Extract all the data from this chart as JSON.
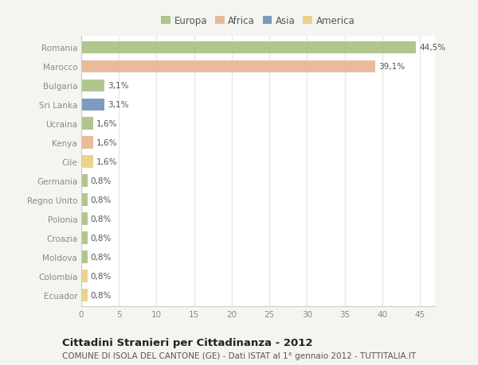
{
  "categories": [
    "Romania",
    "Marocco",
    "Bulgaria",
    "Sri Lanka",
    "Ucraina",
    "Kenya",
    "Cile",
    "Germania",
    "Regno Unito",
    "Polonia",
    "Croazia",
    "Moldova",
    "Colombia",
    "Ecuador"
  ],
  "values": [
    44.5,
    39.1,
    3.1,
    3.1,
    1.6,
    1.6,
    1.6,
    0.8,
    0.8,
    0.8,
    0.8,
    0.8,
    0.8,
    0.8
  ],
  "labels": [
    "44,5%",
    "39,1%",
    "3,1%",
    "3,1%",
    "1,6%",
    "1,6%",
    "1,6%",
    "0,8%",
    "0,8%",
    "0,8%",
    "0,8%",
    "0,8%",
    "0,8%",
    "0,8%"
  ],
  "colors": [
    "#a8c080",
    "#e8b490",
    "#a8c080",
    "#7090b8",
    "#a8c080",
    "#e8b490",
    "#e8d080",
    "#a8c080",
    "#a8c080",
    "#a8c080",
    "#a8c080",
    "#a8c080",
    "#e8d080",
    "#e8d080"
  ],
  "xlim": [
    0,
    47
  ],
  "xticks": [
    0,
    5,
    10,
    15,
    20,
    25,
    30,
    35,
    40,
    45
  ],
  "legend_items": [
    {
      "label": "Europa",
      "color": "#a8c080"
    },
    {
      "label": "Africa",
      "color": "#e8b490"
    },
    {
      "label": "Asia",
      "color": "#7090b8"
    },
    {
      "label": "America",
      "color": "#e8d080"
    }
  ],
  "title": "Cittadini Stranieri per Cittadinanza - 2012",
  "subtitle": "COMUNE DI ISOLA DEL CANTONE (GE) - Dati ISTAT al 1° gennaio 2012 - TUTTITALIA.IT",
  "outer_bg": "#f5f5f0",
  "plot_bg": "#ffffff",
  "grid_color": "#e8e8e8",
  "bar_height": 0.65,
  "label_fontsize": 7.5,
  "tick_fontsize": 7.5,
  "title_fontsize": 9.5,
  "subtitle_fontsize": 7.5,
  "legend_fontsize": 8.5
}
